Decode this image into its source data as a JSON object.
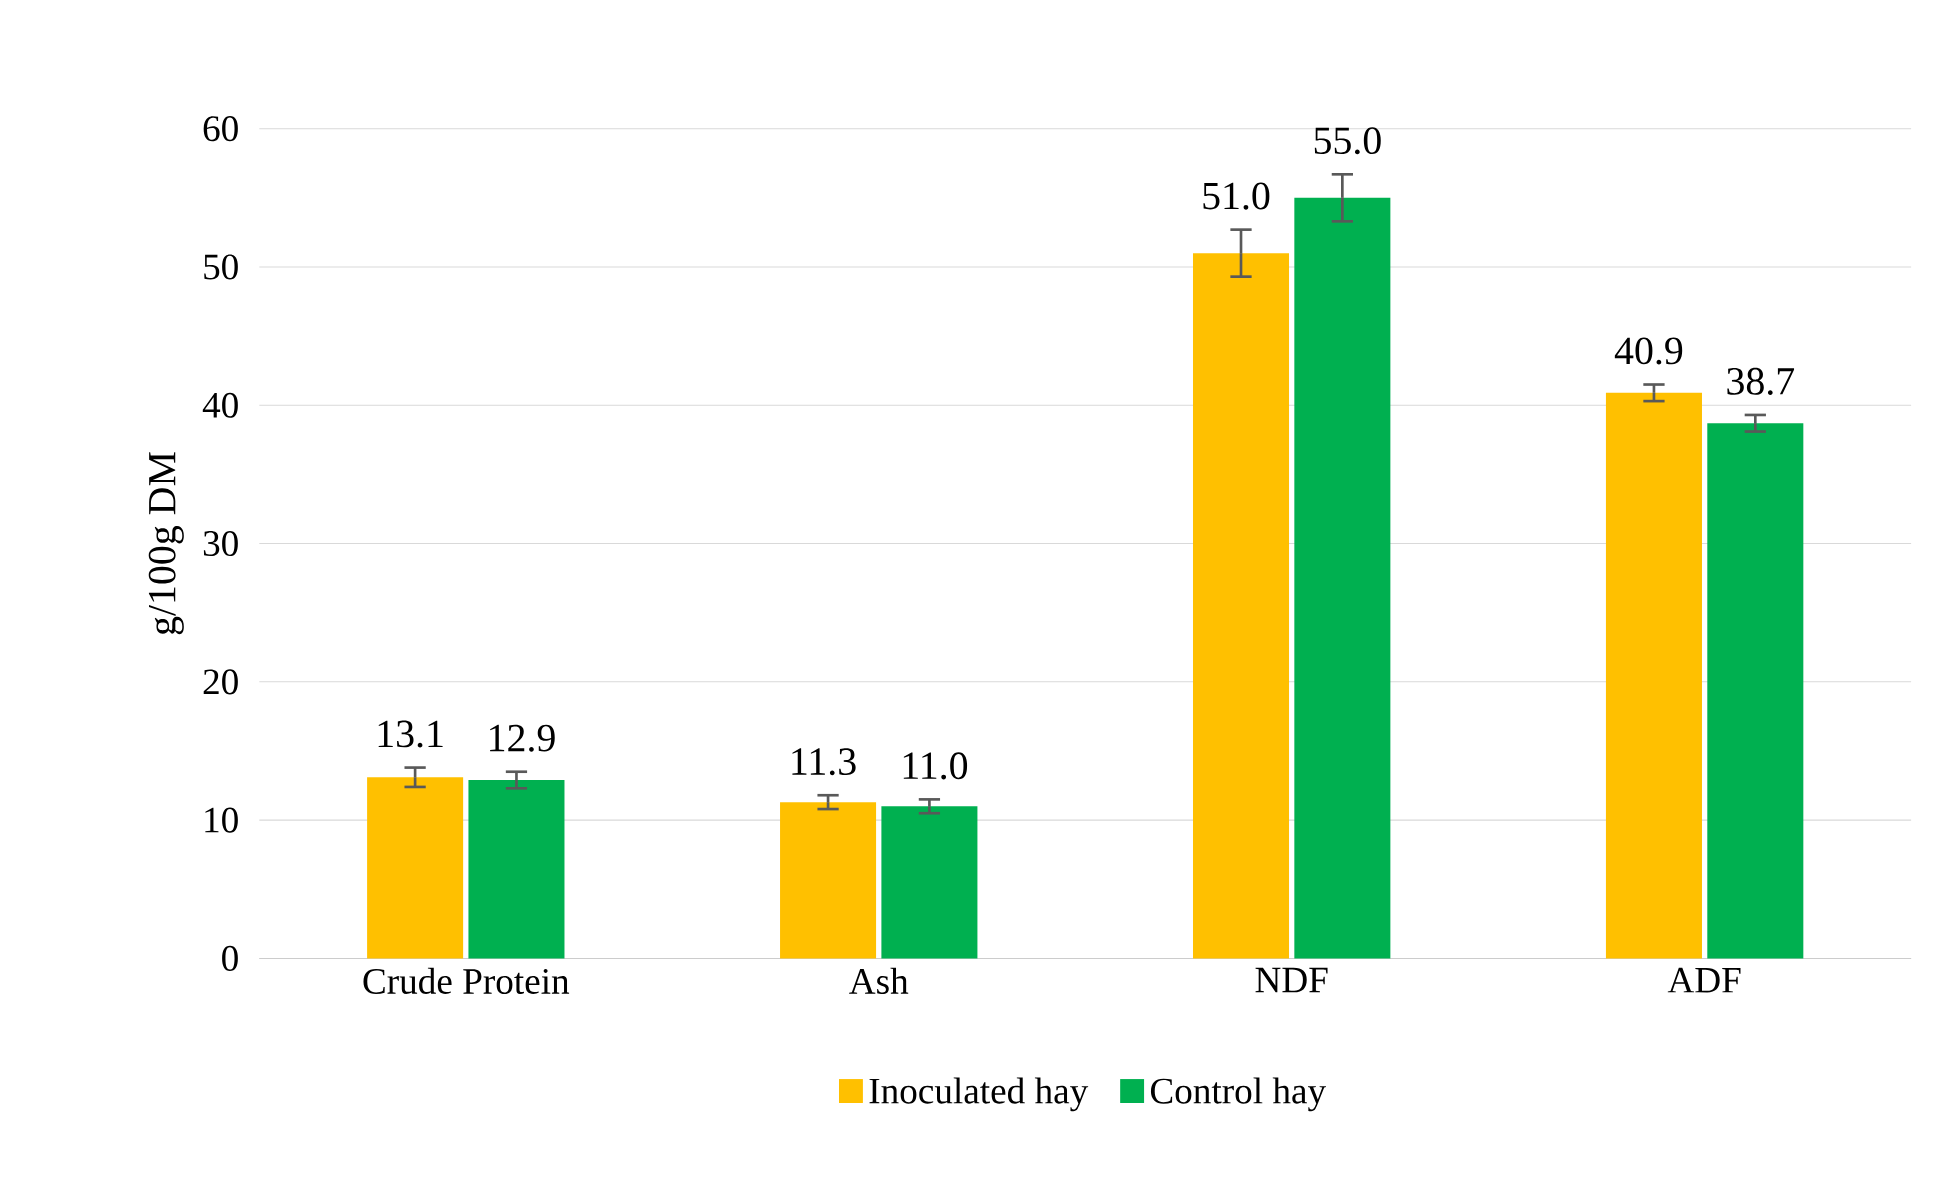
{
  "chart_data": {
    "type": "bar",
    "ylabel": "g/100g DM",
    "categories": [
      "Crude Protein",
      "Ash",
      "NDF",
      "ADF"
    ],
    "series": [
      {
        "name": "Inoculated hay",
        "color": "#ffc000",
        "values": [
          13.1,
          11.3,
          51.0,
          40.9
        ],
        "errors": [
          0.7,
          0.5,
          1.7,
          0.6
        ],
        "value_labels": [
          "13.1",
          "11.3",
          "51.0",
          "40.9"
        ]
      },
      {
        "name": "Control hay",
        "color": "#00b050",
        "values": [
          12.9,
          11.0,
          55.0,
          38.7
        ],
        "errors": [
          0.6,
          0.5,
          1.7,
          0.6
        ],
        "value_labels": [
          "12.9",
          "11.0",
          "55.0",
          "38.7"
        ]
      }
    ],
    "ylim": [
      0,
      60
    ],
    "yticks": [
      0,
      10,
      20,
      30,
      40,
      50,
      60
    ],
    "grid": "y",
    "legend": "bottom"
  }
}
